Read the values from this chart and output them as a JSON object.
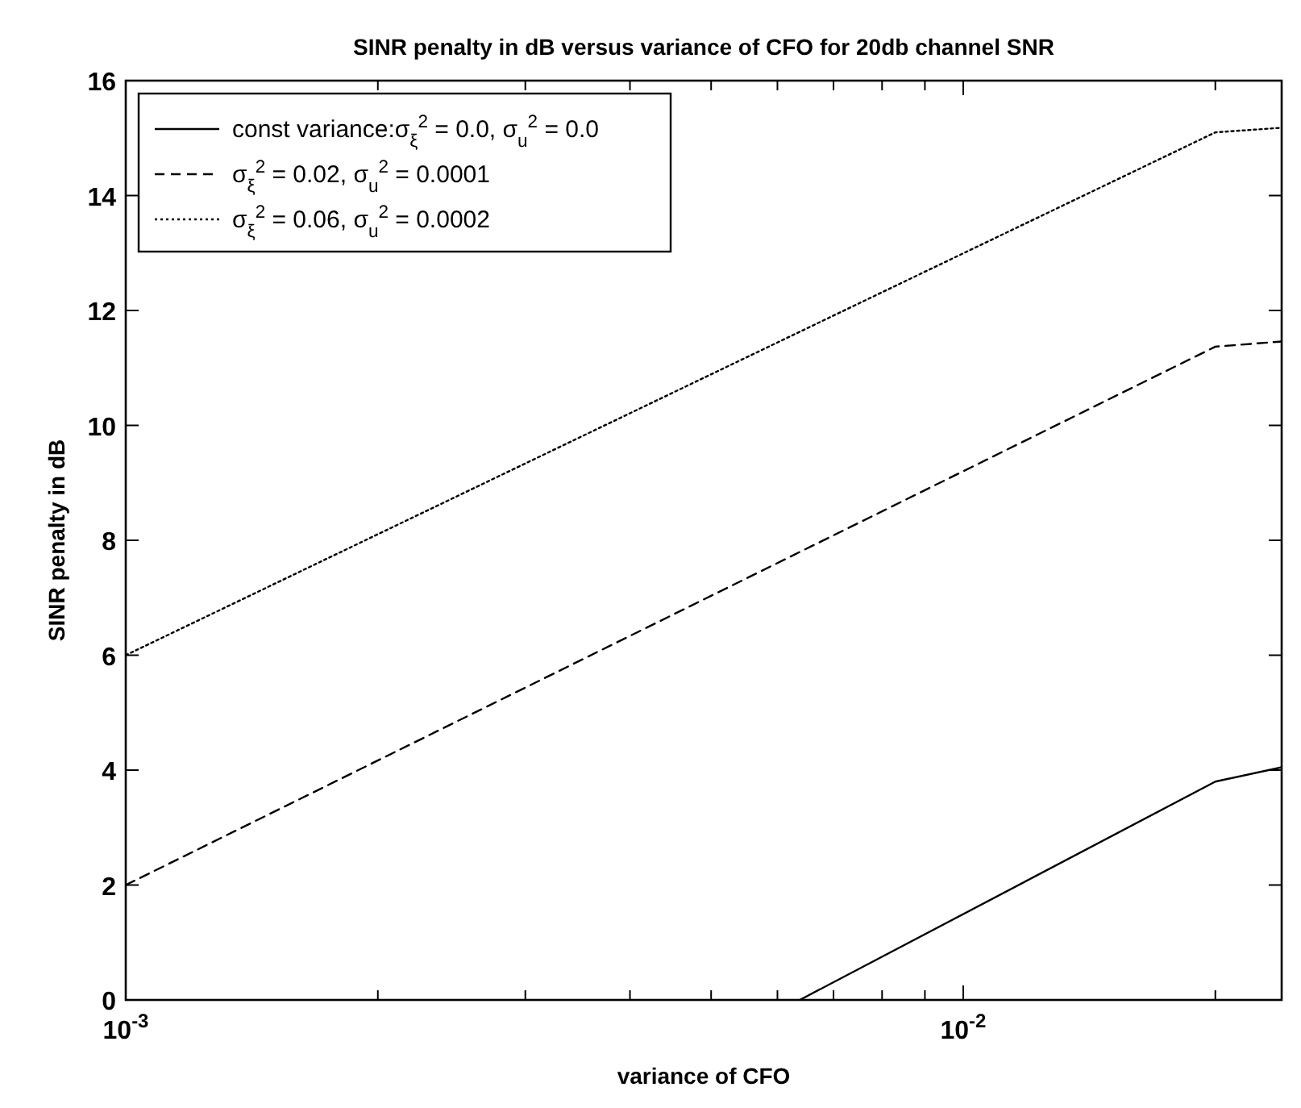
{
  "chart_data": {
    "type": "line",
    "title": "SINR penalty in dB versus variance of CFO for 20db channel SNR",
    "xlabel": "variance of CFO",
    "ylabel": "SINR penalty in dB",
    "log": "x",
    "xlim": [
      0.001,
      0.024
    ],
    "ylim": [
      0,
      16
    ],
    "xticks": [
      {
        "value": 0.001,
        "label": "10$^{-3}$"
      },
      {
        "value": 0.002,
        "label": null
      },
      {
        "value": 0.003,
        "label": null
      },
      {
        "value": 0.004,
        "label": null
      },
      {
        "value": 0.005,
        "label": null
      },
      {
        "value": 0.006,
        "label": null
      },
      {
        "value": 0.007,
        "label": null
      },
      {
        "value": 0.008,
        "label": null
      },
      {
        "value": 0.009,
        "label": null
      },
      {
        "value": 0.01,
        "label": "10$^{-2}$"
      },
      {
        "value": 0.02,
        "label": null
      }
    ],
    "yticks": [
      0,
      2,
      4,
      6,
      8,
      10,
      12,
      14,
      16
    ],
    "grid": false,
    "legend": "top left",
    "marker": "none",
    "series": [
      {
        "name": "const variance:σ$_{ξ}$$^{2}$ = 0.0, σ$_{u}$$^{2}$ = 0.0",
        "color": "#000000",
        "line_style": "solid",
        "x": [
          0.00638,
          0.02,
          0.024
        ],
        "values": [
          0,
          3.8,
          4.05
        ]
      },
      {
        "name": "σ$_{ξ}$$^{2}$ = 0.02, σ$_{u}$$^{2}$ = 0.0001",
        "color": "#000000",
        "line_style": "dashed",
        "x": [
          0.001,
          0.02,
          0.024
        ],
        "values": [
          2.0,
          11.37,
          11.46
        ]
      },
      {
        "name": "σ$_{ξ}$$^{2}$ = 0.06, σ$_{u}$$^{2}$ = 0.0002",
        "color": "#000000",
        "line_style": "dotted",
        "x": [
          0.001,
          0.02,
          0.024
        ],
        "values": [
          6.0,
          15.1,
          15.18
        ]
      }
    ]
  }
}
